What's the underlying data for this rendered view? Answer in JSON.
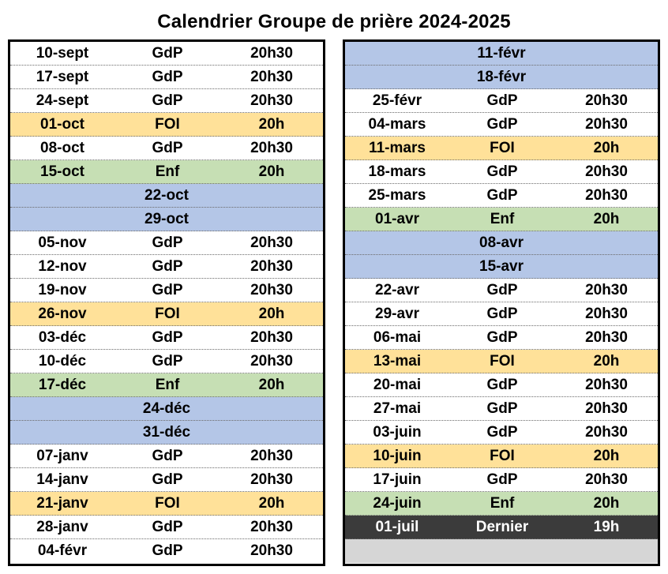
{
  "title": "Calendrier Groupe de prière 2024-2025",
  "colors": {
    "gdp": "#ffffff",
    "foi": "#ffe199",
    "enf": "#c6dfb4",
    "vacance": "#b4c6e7",
    "dernier": "#3b3b3b",
    "vide": "#d6d6d6"
  },
  "left_rows": [
    {
      "date": "10-sept",
      "type": "GdP",
      "time": "20h30",
      "kind": "gdp"
    },
    {
      "date": "17-sept",
      "type": "GdP",
      "time": "20h30",
      "kind": "gdp"
    },
    {
      "date": "24-sept",
      "type": "GdP",
      "time": "20h30",
      "kind": "gdp"
    },
    {
      "date": "01-oct",
      "type": "FOI",
      "time": "20h",
      "kind": "foi"
    },
    {
      "date": "08-oct",
      "type": "GdP",
      "time": "20h30",
      "kind": "gdp"
    },
    {
      "date": "15-oct",
      "type": "Enf",
      "time": "20h",
      "kind": "enf"
    },
    {
      "date": "22-oct",
      "type": "",
      "time": "",
      "kind": "vac"
    },
    {
      "date": "29-oct",
      "type": "",
      "time": "",
      "kind": "vac"
    },
    {
      "date": "05-nov",
      "type": "GdP",
      "time": "20h30",
      "kind": "gdp"
    },
    {
      "date": "12-nov",
      "type": "GdP",
      "time": "20h30",
      "kind": "gdp"
    },
    {
      "date": "19-nov",
      "type": "GdP",
      "time": "20h30",
      "kind": "gdp"
    },
    {
      "date": "26-nov",
      "type": "FOI",
      "time": "20h",
      "kind": "foi"
    },
    {
      "date": "03-déc",
      "type": "GdP",
      "time": "20h30",
      "kind": "gdp"
    },
    {
      "date": "10-déc",
      "type": "GdP",
      "time": "20h30",
      "kind": "gdp"
    },
    {
      "date": "17-déc",
      "type": "Enf",
      "time": "20h",
      "kind": "enf"
    },
    {
      "date": "24-déc",
      "type": "",
      "time": "",
      "kind": "vac"
    },
    {
      "date": "31-déc",
      "type": "",
      "time": "",
      "kind": "vac"
    },
    {
      "date": "07-janv",
      "type": "GdP",
      "time": "20h30",
      "kind": "gdp"
    },
    {
      "date": "14-janv",
      "type": "GdP",
      "time": "20h30",
      "kind": "gdp"
    },
    {
      "date": "21-janv",
      "type": "FOI",
      "time": "20h",
      "kind": "foi"
    },
    {
      "date": "28-janv",
      "type": "GdP",
      "time": "20h30",
      "kind": "gdp"
    },
    {
      "date": "04-févr",
      "type": "GdP",
      "time": "20h30",
      "kind": "gdp"
    }
  ],
  "right_rows": [
    {
      "date": "11-févr",
      "type": "",
      "time": "",
      "kind": "vac"
    },
    {
      "date": "18-févr",
      "type": "",
      "time": "",
      "kind": "vac"
    },
    {
      "date": "25-févr",
      "type": "GdP",
      "time": "20h30",
      "kind": "gdp"
    },
    {
      "date": "04-mars",
      "type": "GdP",
      "time": "20h30",
      "kind": "gdp"
    },
    {
      "date": "11-mars",
      "type": "FOI",
      "time": "20h",
      "kind": "foi"
    },
    {
      "date": "18-mars",
      "type": "GdP",
      "time": "20h30",
      "kind": "gdp"
    },
    {
      "date": "25-mars",
      "type": "GdP",
      "time": "20h30",
      "kind": "gdp"
    },
    {
      "date": "01-avr",
      "type": "Enf",
      "time": "20h",
      "kind": "enf"
    },
    {
      "date": "08-avr",
      "type": "",
      "time": "",
      "kind": "vac"
    },
    {
      "date": "15-avr",
      "type": "",
      "time": "",
      "kind": "vac"
    },
    {
      "date": "22-avr",
      "type": "GdP",
      "time": "20h30",
      "kind": "gdp"
    },
    {
      "date": "29-avr",
      "type": "GdP",
      "time": "20h30",
      "kind": "gdp"
    },
    {
      "date": "06-mai",
      "type": "GdP",
      "time": "20h30",
      "kind": "gdp"
    },
    {
      "date": "13-mai",
      "type": "FOI",
      "time": "20h",
      "kind": "foi"
    },
    {
      "date": "20-mai",
      "type": "GdP",
      "time": "20h30",
      "kind": "gdp"
    },
    {
      "date": "27-mai",
      "type": "GdP",
      "time": "20h30",
      "kind": "gdp"
    },
    {
      "date": "03-juin",
      "type": "GdP",
      "time": "20h30",
      "kind": "gdp"
    },
    {
      "date": "10-juin",
      "type": "FOI",
      "time": "20h",
      "kind": "foi"
    },
    {
      "date": "17-juin",
      "type": "GdP",
      "time": "20h30",
      "kind": "gdp"
    },
    {
      "date": "24-juin",
      "type": "Enf",
      "time": "20h",
      "kind": "enf"
    },
    {
      "date": "01-juil",
      "type": "Dernier",
      "time": "19h",
      "kind": "last"
    },
    {
      "date": "",
      "type": "",
      "time": "",
      "kind": "empty"
    }
  ]
}
